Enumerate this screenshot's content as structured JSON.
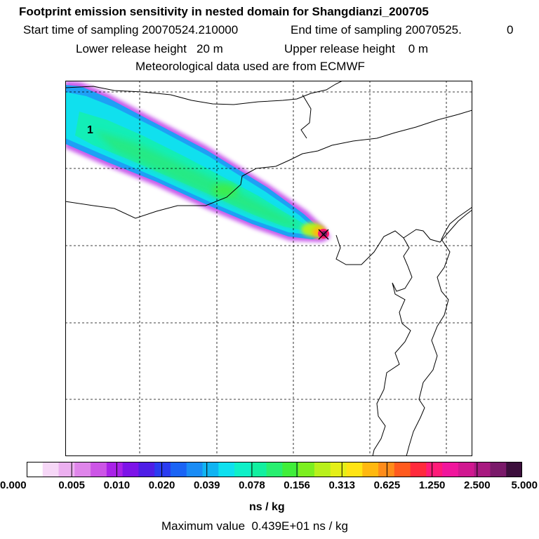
{
  "header": {
    "title": "Footprint emission sensitivity in nested domain for Shangdianzi_200705",
    "start_label": "Start time of sampling 20070524.210000",
    "end_label": "End time of sampling 20070525.",
    "end_suffix": "0",
    "lower_release": "Lower release height   20 m",
    "upper_release": "Upper release height    0 m",
    "met_data": "Meteorological data used are from ECMWF"
  },
  "chart_data": {
    "type": "heatmap",
    "title": "Footprint emission sensitivity in nested domain for Shangdianzi_200705",
    "map_label": "1",
    "grid": true,
    "legend_ticks": [
      "0.000",
      "0.005",
      "0.010",
      "0.020",
      "0.039",
      "0.078",
      "0.156",
      "0.313",
      "0.625",
      "1.250",
      "2.500",
      "5.000"
    ],
    "unit": "ns / kg",
    "max_value_text": "Maximum value  0.439E+01 ns / kg",
    "max_value": 4.39,
    "colors": [
      "#ffffff",
      "#f6d7f7",
      "#ecb0f0",
      "#df85ea",
      "#cc55e6",
      "#a922e8",
      "#7d14e8",
      "#4e1ee6",
      "#2a3cf0",
      "#1a64f5",
      "#1a8cf5",
      "#10b4f2",
      "#0ee0ef",
      "#0ef0c8",
      "#12f0a0",
      "#28ef70",
      "#40ee3a",
      "#7cef20",
      "#b8f01c",
      "#e4ef18",
      "#ffe414",
      "#ffb810",
      "#ff8c1a",
      "#ff5a1e",
      "#ff2a3c",
      "#ff1a78",
      "#f0169c",
      "#d01890",
      "#a81a80",
      "#7a1a6a",
      "#3c0f3c"
    ]
  }
}
